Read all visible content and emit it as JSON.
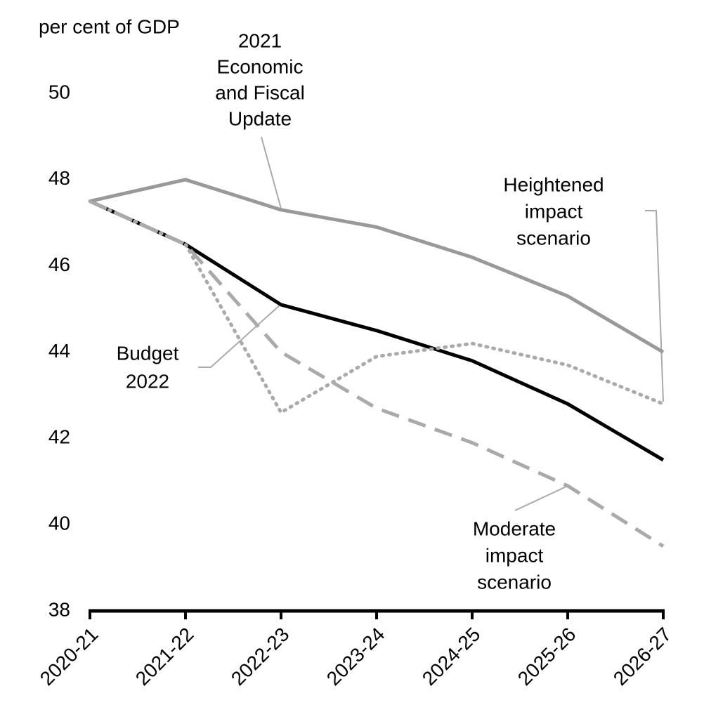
{
  "chart_data": {
    "type": "line",
    "y_label": "per cent of GDP",
    "categories": [
      "2020-21",
      "2021-22",
      "2022-23",
      "2023-24",
      "2024-25",
      "2025-26",
      "2026-27"
    ],
    "ylim": [
      38,
      50
    ],
    "yticks": [
      38,
      40,
      42,
      44,
      46,
      48,
      50
    ],
    "series": [
      {
        "label": [
          "2021",
          "Economic",
          "and Fiscal",
          "Update"
        ],
        "color": "#999999",
        "style": "solid",
        "values": [
          47.5,
          48.0,
          47.3,
          46.9,
          46.2,
          45.3,
          44.0
        ]
      },
      {
        "label": [
          "Budget",
          "2022"
        ],
        "color": "#000000",
        "style": "solid",
        "values": [
          47.5,
          46.5,
          45.1,
          44.5,
          43.8,
          42.8,
          41.5
        ]
      },
      {
        "label": [
          "Heightened",
          "impact",
          "scenario"
        ],
        "color": "#aaaaaa",
        "style": "dotted",
        "values": [
          47.5,
          46.5,
          42.6,
          43.9,
          44.2,
          43.7,
          42.8
        ]
      },
      {
        "label": [
          "Moderate",
          "impact",
          "scenario"
        ],
        "color": "#aaaaaa",
        "style": "dashed",
        "values": [
          47.5,
          46.5,
          44.0,
          42.7,
          41.9,
          40.9,
          39.5
        ]
      }
    ]
  }
}
